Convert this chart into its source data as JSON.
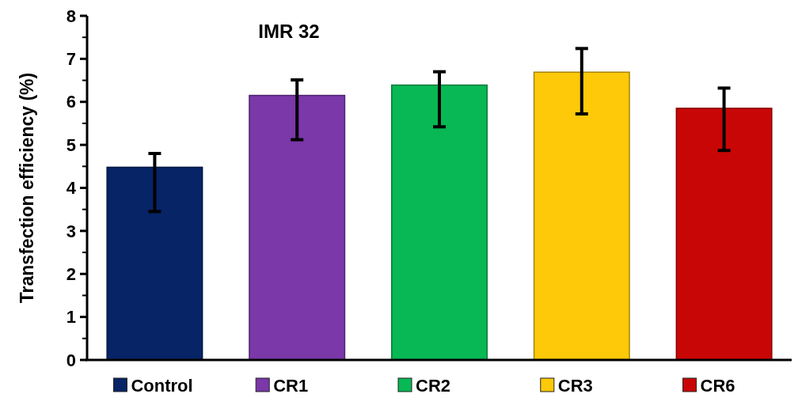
{
  "chart_data": {
    "type": "bar",
    "title": "IMR 32",
    "ylabel": "Transfection efficiency (%)",
    "categories": [
      "Control",
      "CR1",
      "CR2",
      "CR3",
      "CR6"
    ],
    "values": [
      4.48,
      6.15,
      6.39,
      6.69,
      5.85
    ],
    "errors": [
      [
        3.45,
        4.8
      ],
      [
        5.12,
        6.51
      ],
      [
        5.42,
        6.7
      ],
      [
        5.72,
        7.24
      ],
      [
        4.87,
        6.32
      ]
    ],
    "colors": [
      "#062466",
      "#7a38a8",
      "#08b854",
      "#fdc908",
      "#c90606"
    ],
    "ylim": [
      0,
      8
    ],
    "yticks": [
      0,
      1,
      2,
      3,
      4,
      5,
      6,
      7,
      8
    ],
    "grid": false
  }
}
